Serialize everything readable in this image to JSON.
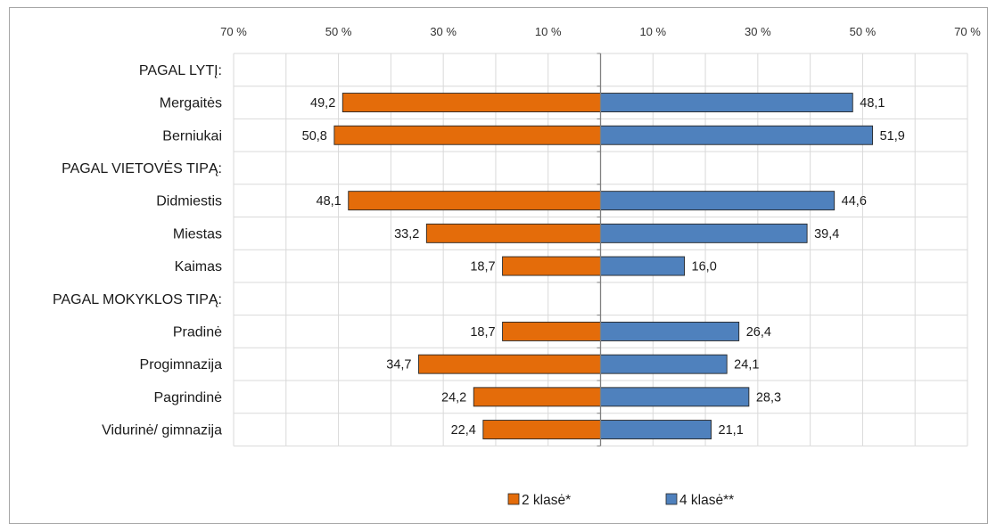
{
  "chart_data": {
    "type": "bar",
    "orientation": "horizontal-diverging",
    "categories": [
      "PAGAL LYTĮ:",
      "Mergaitės",
      "Berniukai",
      "PAGAL VIETOVĖS TIPĄ:",
      "Didmiestis",
      "Miestas",
      "Kaimas",
      "PAGAL MOKYKLOS TIPĄ:",
      "Pradinė",
      "Progimnazija",
      "Pagrindinė",
      "Vidurinė/ gimnazija"
    ],
    "series": [
      {
        "name": "2 klasė*",
        "color": "#e46c0a",
        "side": "left",
        "values": [
          null,
          49.2,
          50.8,
          null,
          48.1,
          33.2,
          18.7,
          null,
          18.7,
          34.7,
          24.2,
          22.4
        ],
        "labels": [
          "",
          "49,2",
          "50,8",
          "",
          "48,1",
          "33,2",
          "18,7",
          "",
          "18,7",
          "34,7",
          "24,2",
          "22,4"
        ]
      },
      {
        "name": "4 klasė**",
        "color": "#4f81bd",
        "side": "right",
        "values": [
          null,
          48.1,
          51.9,
          null,
          44.6,
          39.4,
          16.0,
          null,
          26.4,
          24.1,
          28.3,
          21.1
        ],
        "labels": [
          "",
          "48,1",
          "51,9",
          "",
          "44,6",
          "39,4",
          "16,0",
          "",
          "26,4",
          "24,1",
          "28,3",
          "21,1"
        ]
      }
    ],
    "xlim": [
      -70,
      70
    ],
    "tick_values": [
      -70,
      -50,
      -30,
      -10,
      10,
      30,
      50,
      70
    ],
    "tick_labels": [
      "70 %",
      "50 %",
      "30 %",
      "10 %",
      "10 %",
      "30 %",
      "50 %",
      "70 %"
    ],
    "grid": true,
    "legend_position": "bottom-center",
    "title": "",
    "xlabel": "",
    "ylabel": ""
  }
}
